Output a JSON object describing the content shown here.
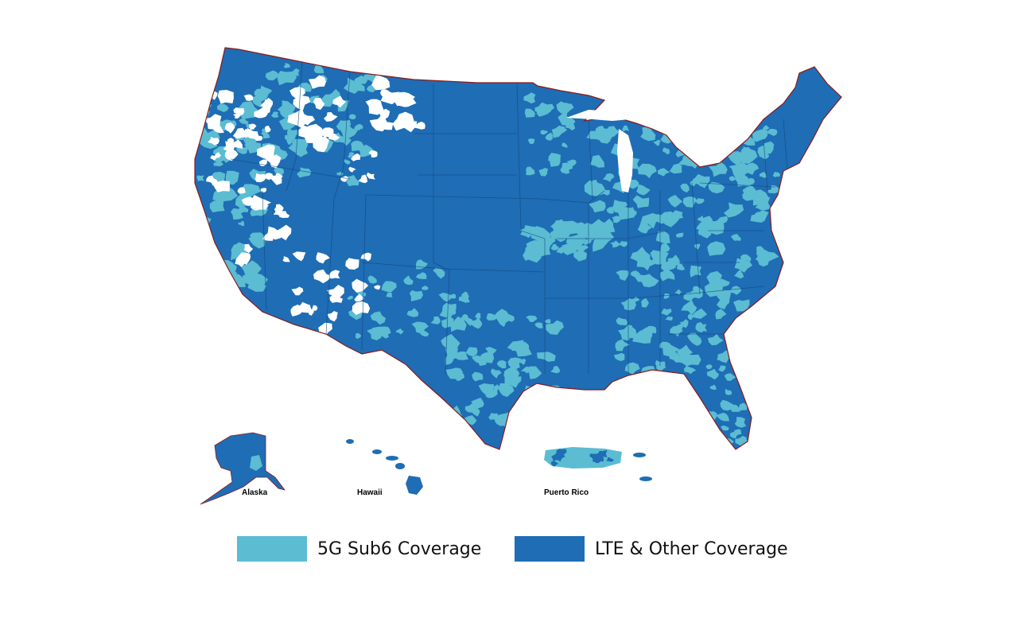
{
  "map": {
    "colors": {
      "lte": "#1e6db5",
      "sub6": "#5bbcd2",
      "nocoverage": "#ffffff",
      "coast": "#8b1a1a",
      "border": "#16467e"
    },
    "insets": {
      "alaska": "Alaska",
      "hawaii": "Hawaii",
      "puerto_rico": "Puerto Rico"
    }
  },
  "legend": {
    "items": [
      {
        "label": "5G Sub6 Coverage",
        "color": "#5bbcd2"
      },
      {
        "label": "LTE & Other Coverage",
        "color": "#1e6db5"
      }
    ]
  }
}
